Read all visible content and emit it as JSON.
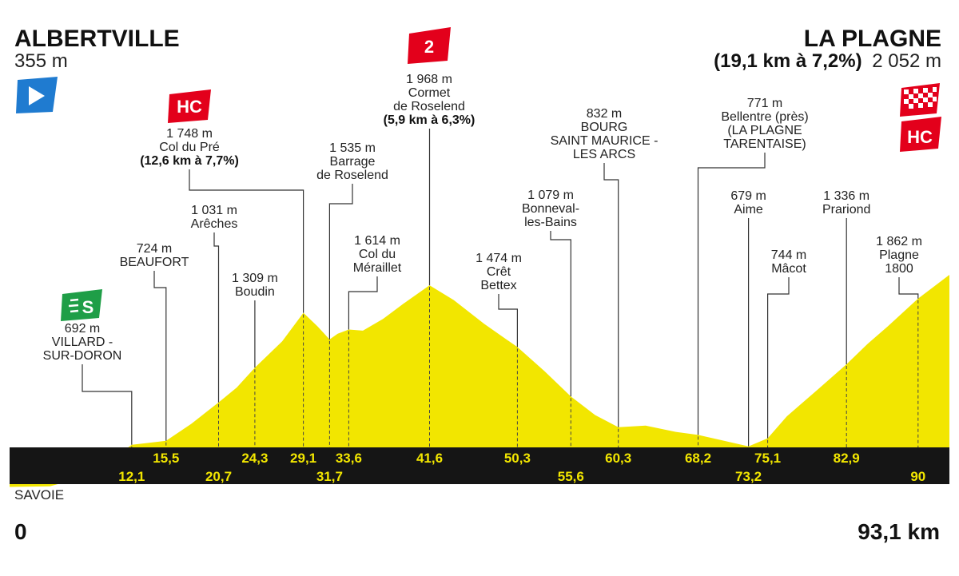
{
  "start": {
    "name": "ALBERTVILLE",
    "alt": "355 m"
  },
  "finish": {
    "name": "LA PLAGNE",
    "climb": "(19,1 km à 7,2%)",
    "alt": "2 052 m"
  },
  "region": "SAVOIE",
  "dist_start": "0",
  "dist_end": "93,1 km",
  "badges": {
    "sprint": "S",
    "cat2": "2",
    "hc": "HC"
  },
  "colors": {
    "profile": "#f2e600",
    "band": "#151515",
    "km_text": "#f2e600",
    "hc_red": "#e3001b",
    "sprint_green": "#1f9e47",
    "start_blue": "#1f7bd0"
  },
  "chart_data": {
    "type": "area",
    "xlim": [
      0,
      93.1
    ],
    "profile_km": [
      0,
      4,
      8,
      12.1,
      13.5,
      15.5,
      18,
      20.7,
      22.5,
      24.3,
      27,
      29.1,
      30.5,
      31.7,
      32.5,
      33.6,
      35,
      37,
      39,
      41.6,
      44,
      47,
      50.3,
      53,
      55.6,
      58,
      60.3,
      63,
      66,
      68.2,
      71,
      73.2,
      75.1,
      77,
      80,
      82.9,
      85,
      87,
      90,
      93.1
    ],
    "profile_alt": [
      355,
      360,
      450,
      692,
      705,
      724,
      860,
      1031,
      1150,
      1309,
      1520,
      1748,
      1640,
      1535,
      1580,
      1614,
      1605,
      1700,
      1820,
      1968,
      1850,
      1660,
      1474,
      1280,
      1079,
      930,
      832,
      845,
      795,
      771,
      720,
      679,
      744,
      920,
      1130,
      1336,
      1500,
      1640,
      1862,
      2052
    ],
    "waypoints": [
      {
        "km": 12.1,
        "km_label": "12,1",
        "alt": "692 m",
        "name": "VILLARD -\nSUR-DORON",
        "row": 2
      },
      {
        "km": 15.5,
        "km_label": "15,5",
        "alt": "724 m",
        "name": "BEAUFORT",
        "row": 1
      },
      {
        "km": 20.7,
        "km_label": "20,7",
        "alt": "1 031 m",
        "name": "Arêches",
        "row": 2
      },
      {
        "km": 24.3,
        "km_label": "24,3",
        "alt": "1 309 m",
        "name": "Boudin",
        "row": 1
      },
      {
        "km": 29.1,
        "km_label": "29,1",
        "alt": "1 748 m",
        "name": "Col du Pré",
        "climb": "(12,6 km à 7,7%)",
        "row": 1
      },
      {
        "km": 31.7,
        "km_label": "31,7",
        "alt": "1 535 m",
        "name": "Barrage\nde Roselend",
        "row": 2
      },
      {
        "km": 33.6,
        "km_label": "33,6",
        "alt": "1 614 m",
        "name": "Col du\nMéraillet",
        "row": 1
      },
      {
        "km": 41.6,
        "km_label": "41,6",
        "alt": "1 968 m",
        "name": "Cormet\nde Roselend",
        "climb": "(5,9 km à 6,3%)",
        "row": 1
      },
      {
        "km": 50.3,
        "km_label": "50,3",
        "alt": "1 474 m",
        "name": "Crêt\nBettex",
        "row": 1
      },
      {
        "km": 55.6,
        "km_label": "55,6",
        "alt": "1 079 m",
        "name": "Bonneval-\nles-Bains",
        "row": 2
      },
      {
        "km": 60.3,
        "km_label": "60,3",
        "alt": "832 m",
        "name": "BOURG\nSAINT MAURICE -\nLES ARCS",
        "row": 1
      },
      {
        "km": 68.2,
        "km_label": "68,2",
        "alt": "771 m",
        "name": "Bellentre (près)\n(LA PLAGNE\nTARENTAISE)",
        "row": 1
      },
      {
        "km": 73.2,
        "km_label": "73,2",
        "alt": "679 m",
        "name": "Aime",
        "row": 2
      },
      {
        "km": 75.1,
        "km_label": "75,1",
        "alt": "744 m",
        "name": "Mâcot",
        "row": 1
      },
      {
        "km": 82.9,
        "km_label": "82,9",
        "alt": "1 336 m",
        "name": "Prariond",
        "row": 1
      },
      {
        "km": 90,
        "km_label": "90",
        "alt": "1 862 m",
        "name": "Plagne\n1800",
        "row": 2
      }
    ]
  }
}
